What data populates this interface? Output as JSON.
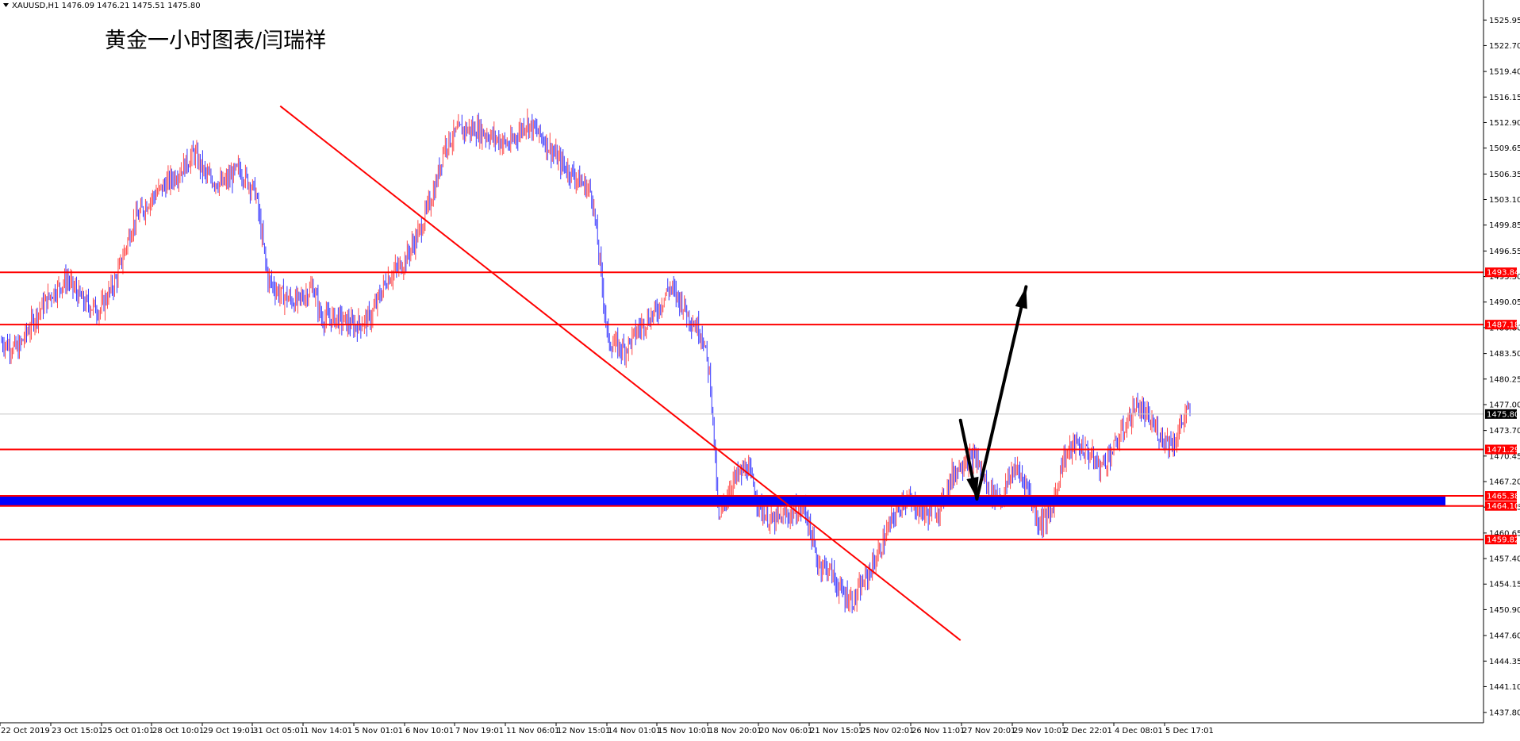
{
  "header": {
    "symbol_line": "XAUUSD,H1  1476.09 1476.21 1475.51 1475.80",
    "annotation_title": "黄金一小时图表/闫瑞祥"
  },
  "colors": {
    "background": "#ffffff",
    "bull_candle": "#ff4a4a",
    "bear_candle": "#3535ff",
    "levels": "#ff0000",
    "support_zone": "#0000ff",
    "arrows": "#000000",
    "axis": "#000000"
  },
  "chart_data": {
    "type": "candlestick",
    "symbol": "XAUUSD",
    "timeframe": "H1",
    "last": {
      "open": 1476.09,
      "high": 1476.21,
      "low": 1475.51,
      "close": 1475.8
    },
    "ylim": [
      1436.5,
      1528.5
    ],
    "y_ticks": [
      1525.95,
      1522.7,
      1519.4,
      1516.15,
      1512.9,
      1509.65,
      1506.35,
      1503.1,
      1499.85,
      1496.55,
      1493.3,
      1490.05,
      1486.8,
      1483.5,
      1480.25,
      1477.0,
      1473.7,
      1470.45,
      1467.2,
      1463.95,
      1460.65,
      1457.4,
      1454.15,
      1450.9,
      1447.6,
      1444.35,
      1441.1,
      1437.8
    ],
    "x_labels": [
      "22 Oct 2019",
      "23 Oct 15:01",
      "25 Oct 01:01",
      "28 Oct 10:01",
      "29 Oct 19:01",
      "31 Oct 05:01",
      "1 Nov 14:01",
      "5 Nov 01:01",
      "6 Nov 10:01",
      "7 Nov 19:01",
      "11 Nov 06:01",
      "12 Nov 15:01",
      "14 Nov 01:01",
      "15 Nov 10:01",
      "18 Nov 20:01",
      "20 Nov 06:01",
      "21 Nov 15:01",
      "25 Nov 02:01",
      "26 Nov 11:01",
      "27 Nov 20:01",
      "29 Nov 10:01",
      "2 Dec 22:01",
      "4 Dec 08:01",
      "5 Dec 17:01"
    ],
    "x_domain": [
      0,
      290
    ],
    "path_anchors": [
      [
        0,
        1485
      ],
      [
        4,
        1484
      ],
      [
        8,
        1488
      ],
      [
        12,
        1491
      ],
      [
        16,
        1493
      ],
      [
        20,
        1490
      ],
      [
        24,
        1489
      ],
      [
        28,
        1493
      ],
      [
        32,
        1500
      ],
      [
        36,
        1503
      ],
      [
        40,
        1505
      ],
      [
        44,
        1507
      ],
      [
        47,
        1509
      ],
      [
        50,
        1506
      ],
      [
        54,
        1505
      ],
      [
        58,
        1507
      ],
      [
        62,
        1504
      ],
      [
        65,
        1493
      ],
      [
        68,
        1491
      ],
      [
        72,
        1490
      ],
      [
        76,
        1492
      ],
      [
        78,
        1488
      ],
      [
        82,
        1488
      ],
      [
        86,
        1487
      ],
      [
        90,
        1488
      ],
      [
        94,
        1493
      ],
      [
        98,
        1495
      ],
      [
        102,
        1499
      ],
      [
        106,
        1505
      ],
      [
        108,
        1510
      ],
      [
        112,
        1512
      ],
      [
        116,
        1512
      ],
      [
        120,
        1511
      ],
      [
        124,
        1510
      ],
      [
        128,
        1513
      ],
      [
        132,
        1511
      ],
      [
        136,
        1508
      ],
      [
        140,
        1506
      ],
      [
        144,
        1504
      ],
      [
        146,
        1495
      ],
      [
        148,
        1485
      ],
      [
        152,
        1484
      ],
      [
        156,
        1487
      ],
      [
        160,
        1489
      ],
      [
        163,
        1492
      ],
      [
        166,
        1490
      ],
      [
        168,
        1488
      ],
      [
        171,
        1486
      ],
      [
        173,
        1480
      ],
      [
        175,
        1462
      ],
      [
        178,
        1467
      ],
      [
        182,
        1469
      ],
      [
        185,
        1464
      ],
      [
        188,
        1462
      ],
      [
        192,
        1463
      ],
      [
        196,
        1464
      ],
      [
        199,
        1457
      ],
      [
        202,
        1456
      ],
      [
        205,
        1453
      ],
      [
        208,
        1452
      ],
      [
        211,
        1455
      ],
      [
        214,
        1458
      ],
      [
        217,
        1462
      ],
      [
        220,
        1465
      ],
      [
        223,
        1464
      ],
      [
        226,
        1463
      ],
      [
        229,
        1464
      ],
      [
        232,
        1468
      ],
      [
        235,
        1470
      ],
      [
        238,
        1470
      ],
      [
        241,
        1466
      ],
      [
        244,
        1465
      ],
      [
        247,
        1469
      ],
      [
        250,
        1467
      ],
      [
        253,
        1462
      ],
      [
        256,
        1463
      ],
      [
        259,
        1470
      ],
      [
        262,
        1472
      ],
      [
        265,
        1471
      ],
      [
        268,
        1469
      ],
      [
        271,
        1471
      ],
      [
        274,
        1474
      ],
      [
        277,
        1477
      ],
      [
        280,
        1475
      ],
      [
        283,
        1473
      ],
      [
        286,
        1472
      ],
      [
        289,
        1476
      ],
      [
        290,
        1475.8
      ]
    ],
    "horizontal_levels": [
      1493.84,
      1487.18,
      1471.29,
      1465.38,
      1464.1,
      1459.82
    ],
    "current_price": 1475.8,
    "support_zone": [
      1464.1,
      1465.38
    ],
    "trendline": {
      "from": [
        68,
        1515
      ],
      "to": [
        234,
        1447
      ]
    },
    "projection_path": [
      [
        234,
        1475
      ],
      [
        238,
        1465
      ],
      [
        250,
        1492
      ]
    ]
  }
}
